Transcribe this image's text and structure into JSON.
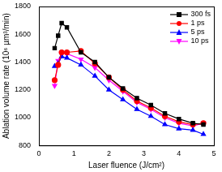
{
  "chart_data": {
    "type": "line",
    "x_label": "Laser fluence (J/cm²)",
    "y_label": "Ablation volume rate (10⁶ µm³/min)",
    "x": [
      0.45,
      0.55,
      0.65,
      0.8,
      1.2,
      1.6,
      2.0,
      2.4,
      2.8,
      3.2,
      3.6,
      4.0,
      4.4,
      4.7
    ],
    "series": [
      {
        "name": "300 fs",
        "color": "#000000",
        "marker": "square",
        "values": [
          1500,
          1590,
          1680,
          1650,
          1470,
          1400,
          1290,
          1210,
          1140,
          1090,
          1030,
          990,
          960,
          950
        ]
      },
      {
        "name": "1 ps",
        "color": "#ff0000",
        "marker": "circle",
        "values": [
          1270,
          1380,
          1470,
          1470,
          1480,
          1390,
          1290,
          1200,
          1120,
          1070,
          1010,
          970,
          950,
          960
        ]
      },
      {
        "name": "5 ps",
        "color": "#0000ff",
        "marker": "triangle",
        "values": [
          1370,
          1390,
          1440,
          1430,
          1380,
          1300,
          1200,
          1130,
          1060,
          1010,
          950,
          920,
          910,
          880
        ]
      },
      {
        "name": "10 ps",
        "color": "#ff00ff",
        "marker": "triangle-down",
        "values": [
          1230,
          1410,
          1460,
          1460,
          1420,
          1360,
          1270,
          1190,
          1110,
          1060,
          1000,
          960,
          940,
          960
        ]
      }
    ],
    "xlim": [
      0,
      5
    ],
    "xticks": [
      0,
      1,
      2,
      3,
      4,
      5
    ],
    "ylim": [
      800,
      1800
    ],
    "yticks": [
      800,
      1000,
      1200,
      1400,
      1600,
      1800
    ],
    "grid": false,
    "legend": "top right"
  }
}
